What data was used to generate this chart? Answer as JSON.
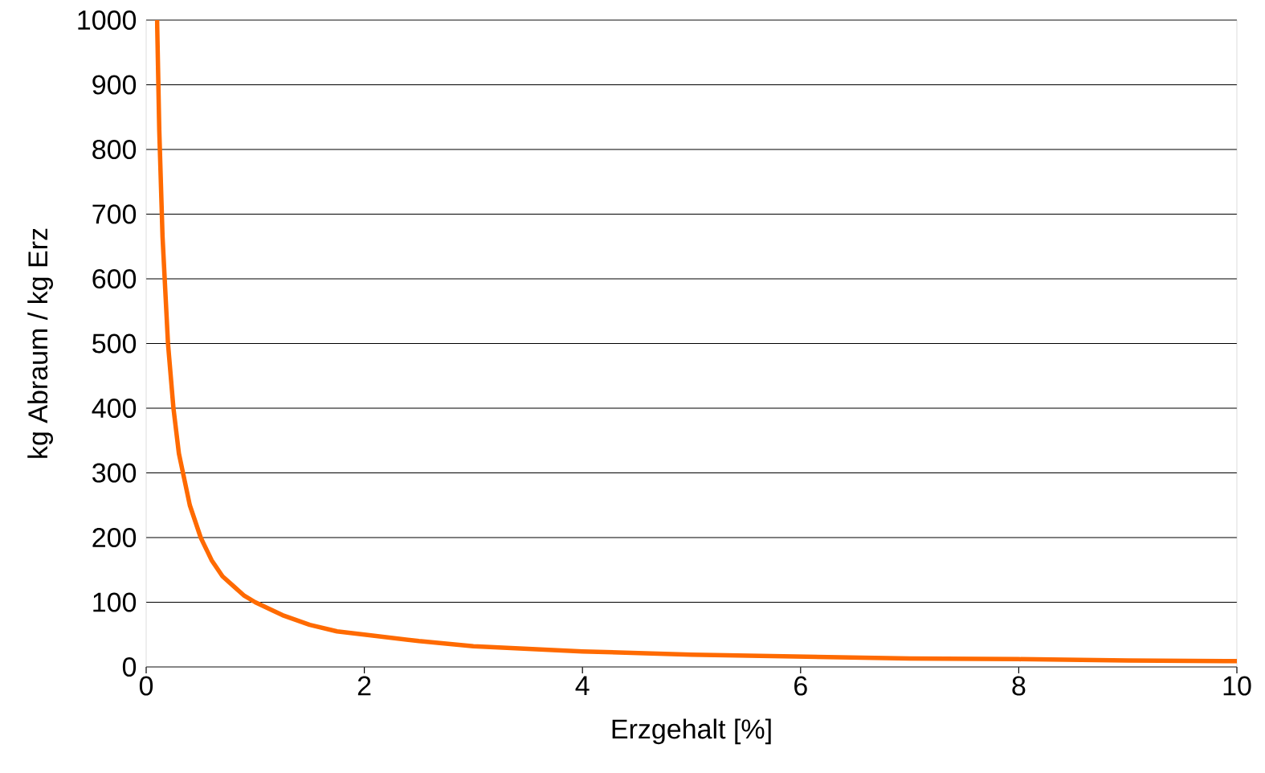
{
  "chart_data": {
    "type": "line",
    "xlabel": "Erzgehalt  [%]",
    "ylabel": "kg Abraum / kg Erz",
    "x": [
      0.1,
      0.12,
      0.15,
      0.2,
      0.25,
      0.3,
      0.4,
      0.5,
      0.6,
      0.7,
      0.8,
      0.9,
      1,
      1.25,
      1.5,
      1.75,
      2,
      2.5,
      3,
      4,
      5,
      6,
      7,
      8,
      9,
      10
    ],
    "series": [
      {
        "color": "#ff6a00",
        "values": [
          1000,
          830,
          665,
          500,
          400,
          330,
          250,
          200,
          165,
          140,
          125,
          110,
          100,
          80,
          65,
          55,
          50,
          40,
          32,
          24,
          19,
          16,
          13,
          12,
          10,
          9
        ]
      }
    ],
    "xlim": [
      0,
      10
    ],
    "ylim": [
      0,
      1000
    ],
    "xticks": [
      0,
      2,
      4,
      6,
      8,
      10
    ],
    "yticks": [
      0,
      100,
      200,
      300,
      400,
      500,
      600,
      700,
      800,
      900,
      1000
    ],
    "grid": "y",
    "marker": "none",
    "line_style": "solid"
  }
}
